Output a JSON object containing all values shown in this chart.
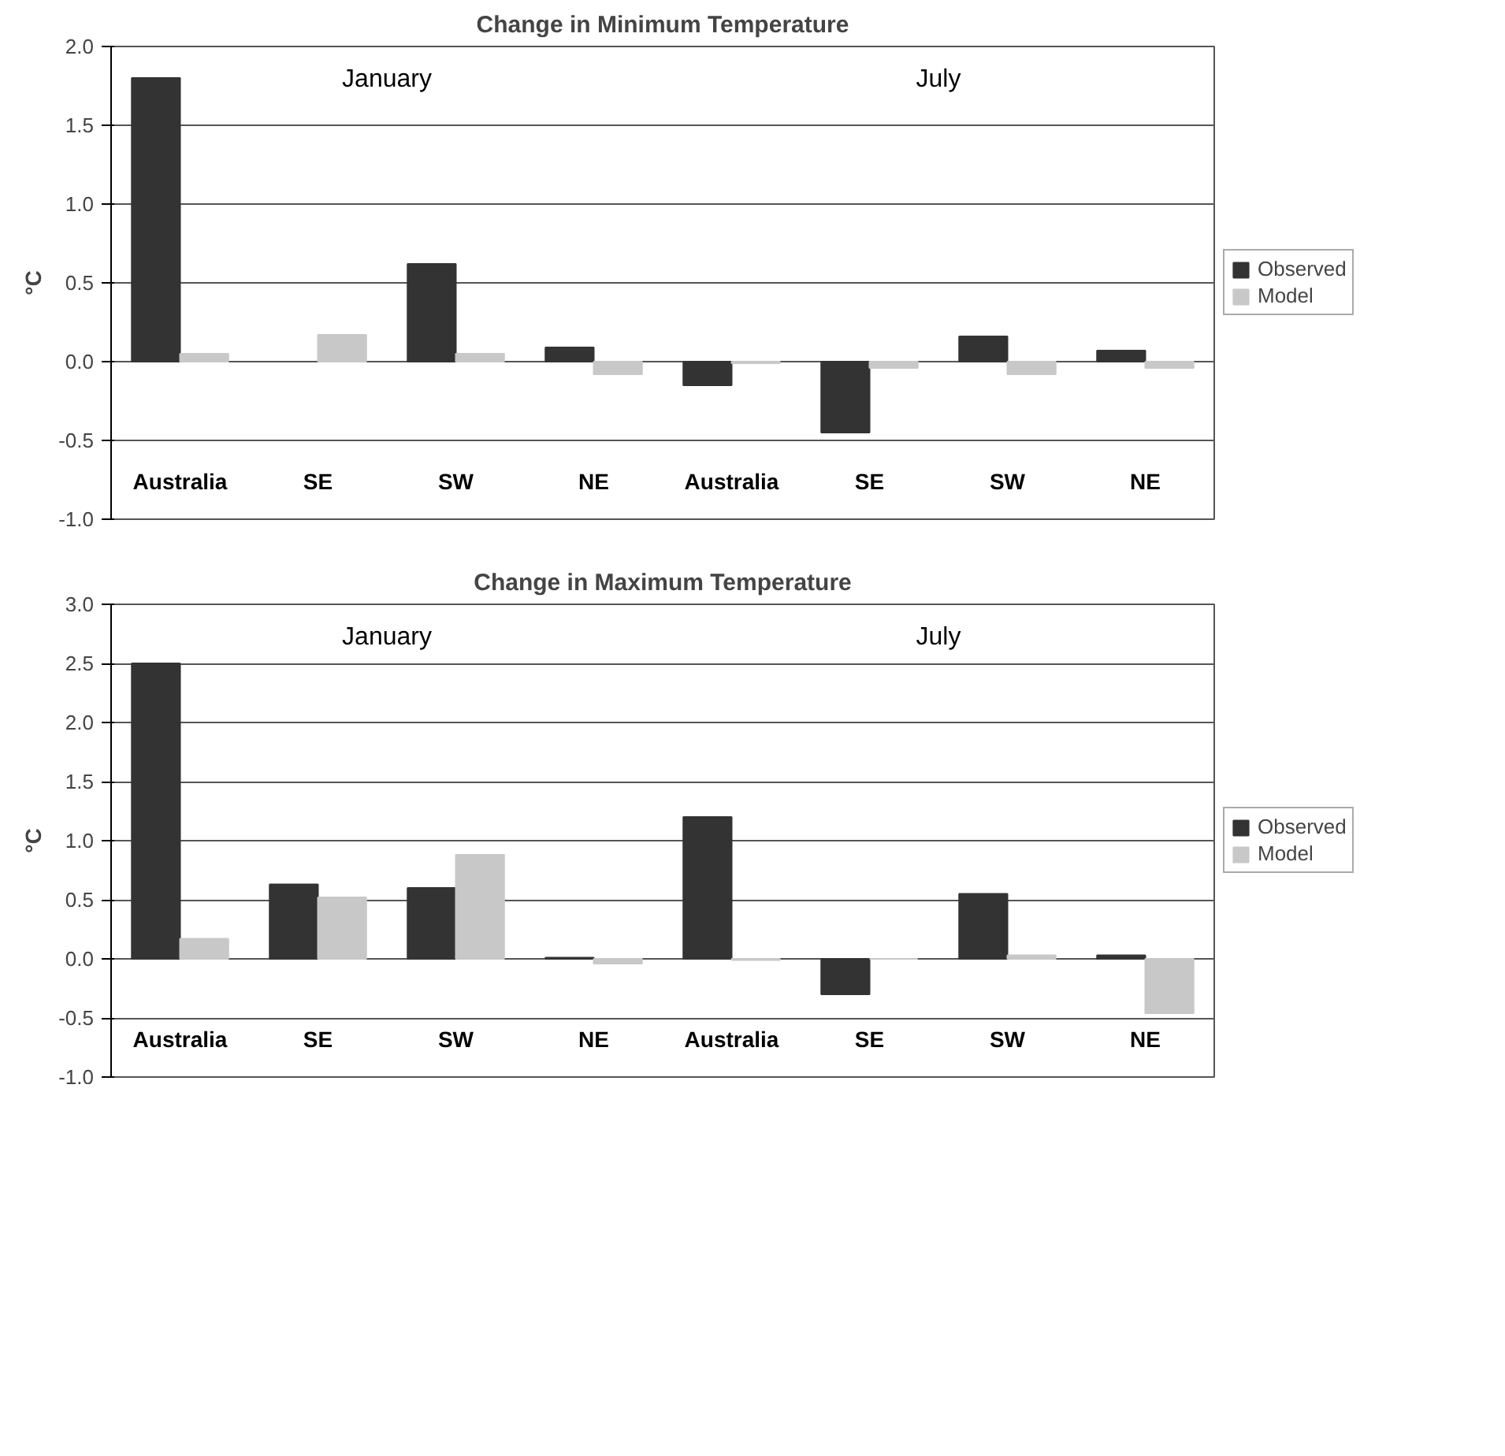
{
  "chart_data": [
    {
      "type": "bar",
      "title": "Change in Minimum Temperature",
      "ylabel": "°C",
      "categories": [
        "Australia",
        "SE",
        "SW",
        "NE",
        "Australia",
        "SE",
        "SW",
        "NE"
      ],
      "series": [
        {
          "name": "Observed",
          "color": "#333333",
          "values": [
            1.8,
            null,
            0.62,
            0.09,
            -0.15,
            -0.45,
            0.16,
            0.07
          ]
        },
        {
          "name": "Model",
          "color": "#c8c8c8",
          "values": [
            0.05,
            0.17,
            0.05,
            -0.08,
            -0.01,
            -0.04,
            -0.08,
            -0.04
          ]
        }
      ],
      "ylim": [
        -1.0,
        2.0
      ],
      "yticks": [
        {
          "value": -1,
          "label": "-1.0"
        },
        {
          "value": -0.5,
          "label": "-0.5"
        },
        {
          "value": 0,
          "label": "0.0"
        },
        {
          "value": 0.5,
          "label": "0.5"
        },
        {
          "value": 1,
          "label": "1.0"
        },
        {
          "value": 1.5,
          "label": "1.5"
        },
        {
          "value": 2,
          "label": "2.0"
        }
      ],
      "annotations": [
        "January",
        "July"
      ],
      "grid": "y",
      "legend": "right"
    },
    {
      "type": "bar",
      "title": "Change in Maximum Temperature",
      "ylabel": "°C",
      "categories": [
        "Australia",
        "SE",
        "SW",
        "NE",
        "Australia",
        "SE",
        "SW",
        "NE"
      ],
      "series": [
        {
          "name": "Observed",
          "color": "#333333",
          "values": [
            2.5,
            0.63,
            0.6,
            0.01,
            1.2,
            -0.3,
            0.55,
            0.03
          ]
        },
        {
          "name": "Model",
          "color": "#c8c8c8",
          "values": [
            0.17,
            0.52,
            0.88,
            -0.04,
            -0.01,
            0.0,
            0.03,
            -0.46
          ]
        }
      ],
      "ylim": [
        -1.0,
        3.0
      ],
      "yticks": [
        {
          "value": -1,
          "label": "-1.0"
        },
        {
          "value": -0.5,
          "label": "-0.5"
        },
        {
          "value": 0,
          "label": "0.0"
        },
        {
          "value": 0.5,
          "label": "0.5"
        },
        {
          "value": 1,
          "label": "1.0"
        },
        {
          "value": 1.5,
          "label": "1.5"
        },
        {
          "value": 2,
          "label": "2.0"
        },
        {
          "value": 2.5,
          "label": "2.5"
        },
        {
          "value": 3,
          "label": "3.0"
        }
      ],
      "annotations": [
        "January",
        "July"
      ],
      "grid": "y",
      "legend": "right"
    }
  ]
}
